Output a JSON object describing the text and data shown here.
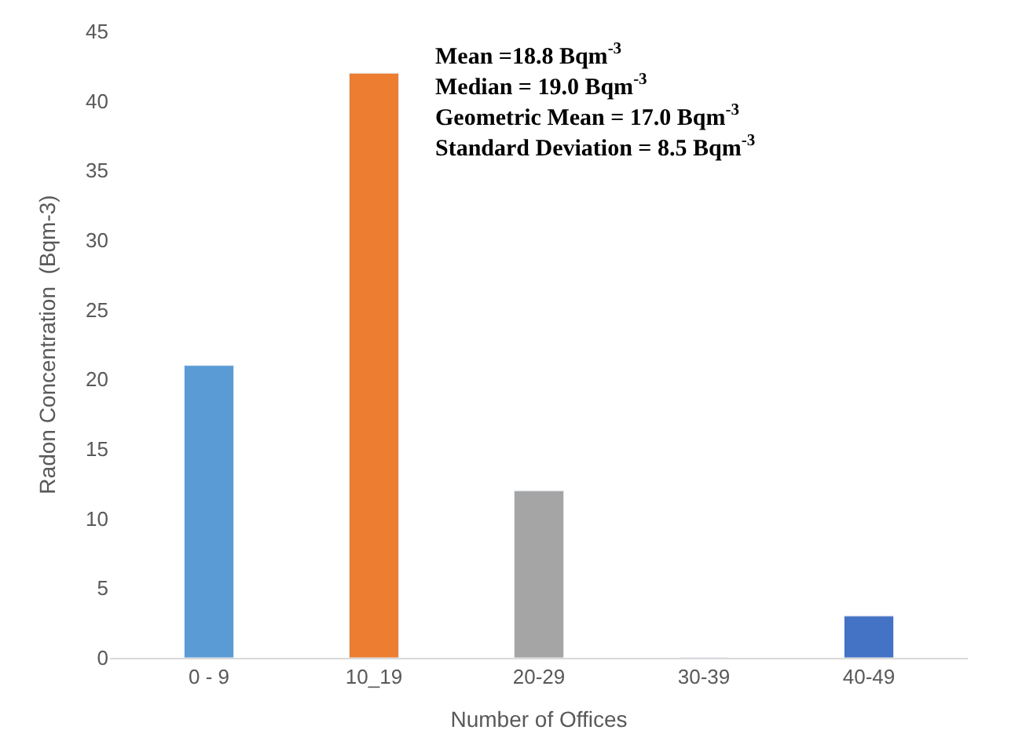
{
  "chart_data": {
    "type": "bar",
    "xlabel": "Number of Offices",
    "ylabel": "Radon Concentration  (Bqm-3)",
    "categories": [
      "0 - 9",
      "10_19",
      "20-29",
      "30-39",
      "40-49"
    ],
    "values": [
      21,
      42,
      12,
      0,
      3
    ],
    "colors": [
      "#5b9bd5",
      "#ed7d31",
      "#a5a5a5",
      null,
      "#4472c4"
    ],
    "ylim": [
      0,
      45
    ],
    "yticks": [
      0,
      5,
      10,
      15,
      20,
      25,
      30,
      35,
      40,
      45
    ],
    "grid": false,
    "annotations": [
      "Mean =18.8 Bqm$^{-3}$",
      "Median = 19.0 Bqm$^{-3}$",
      "Geometric Mean = 17.0 Bqm$^{-3}$",
      "Standard Deviation = 8.5 Bqm$^{-3}$"
    ]
  }
}
